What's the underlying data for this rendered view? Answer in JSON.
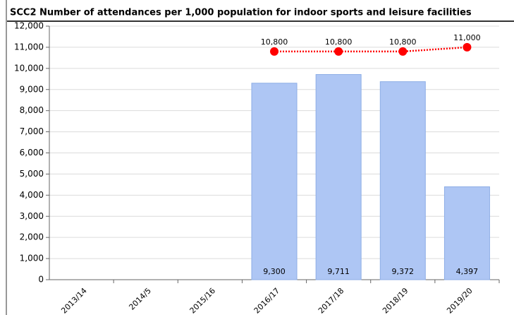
{
  "chart_data": {
    "type": "bar",
    "title": "SCC2 Number of attendances per 1,000 population for indoor sports and leisure facilities",
    "categories": [
      "2013/14",
      "2014/5",
      "2015/16",
      "2016/17",
      "2017/18",
      "2018/19",
      "2019/20"
    ],
    "series": [
      {
        "type": "bar",
        "color": "#aec6f4",
        "values": [
          null,
          null,
          null,
          9300,
          9711,
          9372,
          4397
        ],
        "value_labels": [
          null,
          null,
          null,
          "9,300",
          "9,711",
          "9,372",
          "4,397"
        ]
      },
      {
        "type": "line",
        "color": "#ff0000",
        "values": [
          null,
          null,
          null,
          10800,
          10800,
          10800,
          11000
        ],
        "value_labels": [
          null,
          null,
          null,
          "10,800",
          "10,800",
          "10,800",
          "11,000"
        ]
      }
    ],
    "ylim": [
      0,
      12000
    ],
    "yticks": [
      0,
      {
        "value": 1000,
        "label": "1,000"
      },
      {
        "value": 2000,
        "label": "2,000"
      },
      {
        "value": 3000,
        "label": "3,000"
      },
      {
        "value": 4000,
        "label": "4,000"
      },
      {
        "value": 5000,
        "label": "5,000"
      },
      {
        "value": 6000,
        "label": "6,000"
      },
      {
        "value": 7000,
        "label": "7,000"
      },
      {
        "value": 8000,
        "label": "8,000"
      },
      {
        "value": 9000,
        "label": "9,000"
      },
      {
        "value": 10000,
        "label": "10,000"
      },
      {
        "value": 11000,
        "label": "11,000"
      },
      {
        "value": 12000,
        "label": "12,000"
      }
    ],
    "grid": true
  }
}
